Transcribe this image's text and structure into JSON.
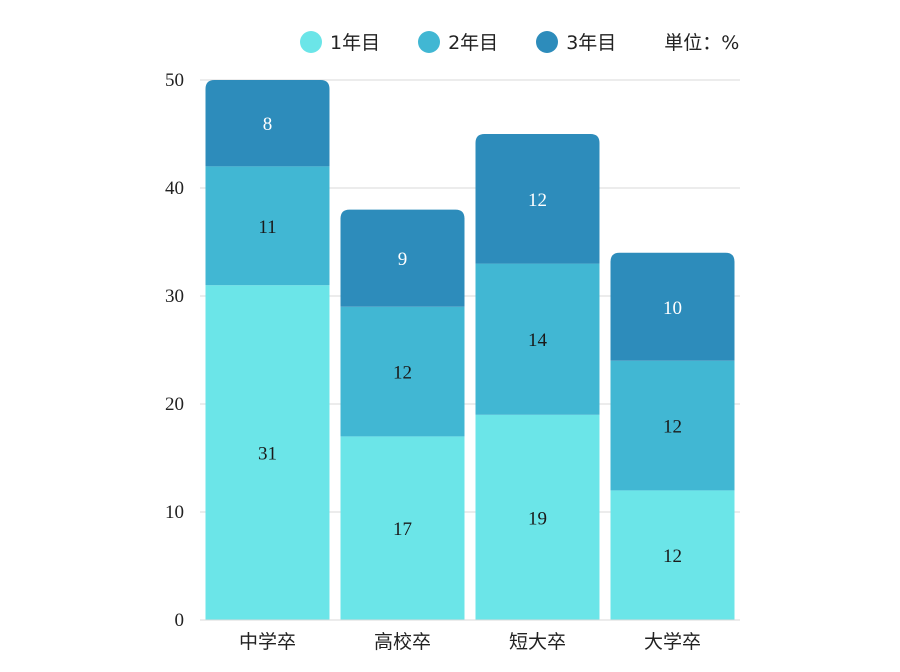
{
  "legend": {
    "items": [
      {
        "label": "1年目",
        "color": "#6be5e8"
      },
      {
        "label": "2年目",
        "color": "#41b7d3"
      },
      {
        "label": "3年目",
        "color": "#2d8cbb"
      }
    ],
    "unit": "単位：%"
  },
  "chart_data": {
    "type": "bar",
    "stacked": true,
    "categories": [
      "中学卒",
      "高校卒",
      "短大卒",
      "大学卒"
    ],
    "series": [
      {
        "name": "1年目",
        "values": [
          31,
          17,
          19,
          12
        ],
        "color": "#6be5e8"
      },
      {
        "name": "2年目",
        "values": [
          11,
          12,
          14,
          12
        ],
        "color": "#41b7d3"
      },
      {
        "name": "3年目",
        "values": [
          8,
          9,
          12,
          10
        ],
        "color": "#2d8cbb"
      }
    ],
    "ylim": [
      0,
      50
    ],
    "yticks": [
      0,
      10,
      20,
      30,
      40,
      50
    ],
    "grid": true,
    "legend_position": "top",
    "title": "",
    "xlabel": "",
    "ylabel": ""
  }
}
